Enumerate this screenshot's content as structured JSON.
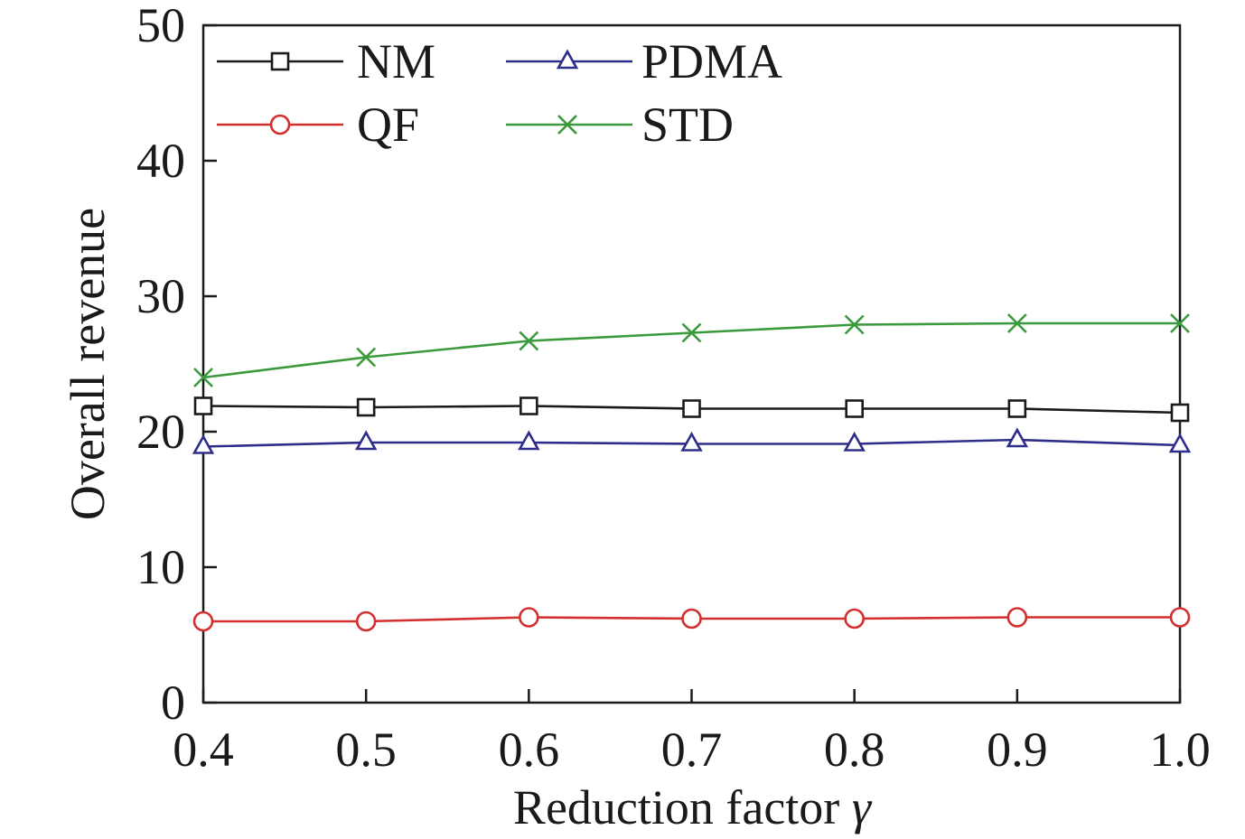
{
  "chart_data": {
    "type": "line",
    "x": [
      0.4,
      0.5,
      0.6,
      0.7,
      0.8,
      0.9,
      1.0
    ],
    "xtick_labels": [
      "0.4",
      "0.5",
      "0.6",
      "0.7",
      "0.8",
      "0.9",
      "1.0"
    ],
    "yticks": [
      0,
      10,
      20,
      30,
      40,
      50
    ],
    "xlim": [
      0.4,
      1.0
    ],
    "ylim": [
      0,
      50
    ],
    "xlabel": "Reduction factor γ",
    "ylabel": "Overall revenue",
    "grid": false,
    "legend": {
      "placement": "top-left"
    },
    "series": [
      {
        "name": "NM",
        "color": "#1a1a1a",
        "marker": "square",
        "values": [
          21.9,
          21.8,
          21.9,
          21.7,
          21.7,
          21.7,
          21.4
        ]
      },
      {
        "name": "PDMA",
        "color": "#2e2e8a",
        "marker": "triangle",
        "values": [
          18.9,
          19.2,
          19.2,
          19.1,
          19.1,
          19.4,
          19.0
        ]
      },
      {
        "name": "QF",
        "color": "#d32f2f",
        "marker": "circle",
        "values": [
          6.0,
          6.0,
          6.3,
          6.2,
          6.2,
          6.3,
          6.3
        ]
      },
      {
        "name": "STD",
        "color": "#3b9a3b",
        "marker": "cross",
        "values": [
          24.0,
          25.5,
          26.7,
          27.3,
          27.9,
          28.0,
          28.0
        ]
      }
    ]
  }
}
